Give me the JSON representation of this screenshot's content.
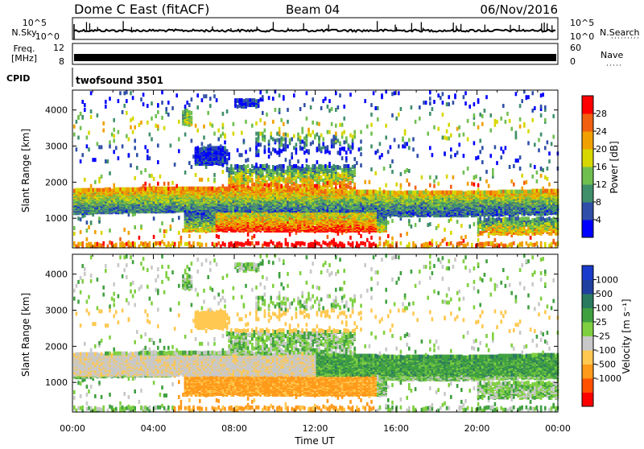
{
  "header": {
    "station": "Dome C East (fitACF)",
    "beam": "Beam 04",
    "date": "06/Nov/2016"
  },
  "strip_labels": {
    "noise_sky": "N.Sky",
    "noise_search": "N.Search",
    "freq_line1": "Freq.",
    "freq_line2": "[MHz]",
    "nave": "Nave",
    "cpid": "CPID",
    "cpid_value": "twofsound 3501"
  },
  "strip_ticks": {
    "noise_left": [
      "10^5",
      "10^0"
    ],
    "noise_right": [
      "10^5",
      "10^0"
    ],
    "freq_left": [
      "12",
      "8"
    ],
    "nave_right": [
      "60",
      "0"
    ]
  },
  "colors": {
    "power": [
      "#0000ff",
      "#2f4fa8",
      "#3f8f6b",
      "#6fbf4f",
      "#d7d700",
      "#f0a000",
      "#f06010",
      "#ff0000"
    ],
    "velocity": [
      "#ff0000",
      "#ff5000",
      "#ff9a1a",
      "#ffc850",
      "#c8c8c8",
      "#7fd040",
      "#3fa040",
      "#2a7a60",
      "#2040a0",
      "#1a3ccc"
    ]
  },
  "chart_data": [
    {
      "type": "heatmap",
      "name": "power-panel",
      "xlabel": "",
      "ylabel": "Slant Range [km]",
      "xlim_hours": [
        0,
        24
      ],
      "ylim": [
        180,
        4550
      ],
      "y_ticks": [
        1000,
        2000,
        3000,
        4000
      ],
      "colorbar": {
        "label": "Power [dB]",
        "range": [
          0,
          32
        ],
        "ticks": [
          4,
          8,
          12,
          16,
          20,
          24,
          28
        ]
      }
    },
    {
      "type": "heatmap",
      "name": "velocity-panel",
      "xlabel": "Time UT",
      "ylabel": "Slant Range [km]",
      "xlim_hours": [
        0,
        24
      ],
      "ylim": [
        180,
        4550
      ],
      "y_ticks": [
        1000,
        2000,
        3000,
        4000
      ],
      "x_ticks": [
        "00:00",
        "04:00",
        "08:00",
        "12:00",
        "16:00",
        "20:00",
        "00:00"
      ],
      "colorbar": {
        "label": "Velocity [m s⁻¹]",
        "ticks": [
          "1000",
          "500",
          "100",
          "25",
          "-25",
          "-100",
          "-500",
          "-1000"
        ]
      }
    }
  ]
}
